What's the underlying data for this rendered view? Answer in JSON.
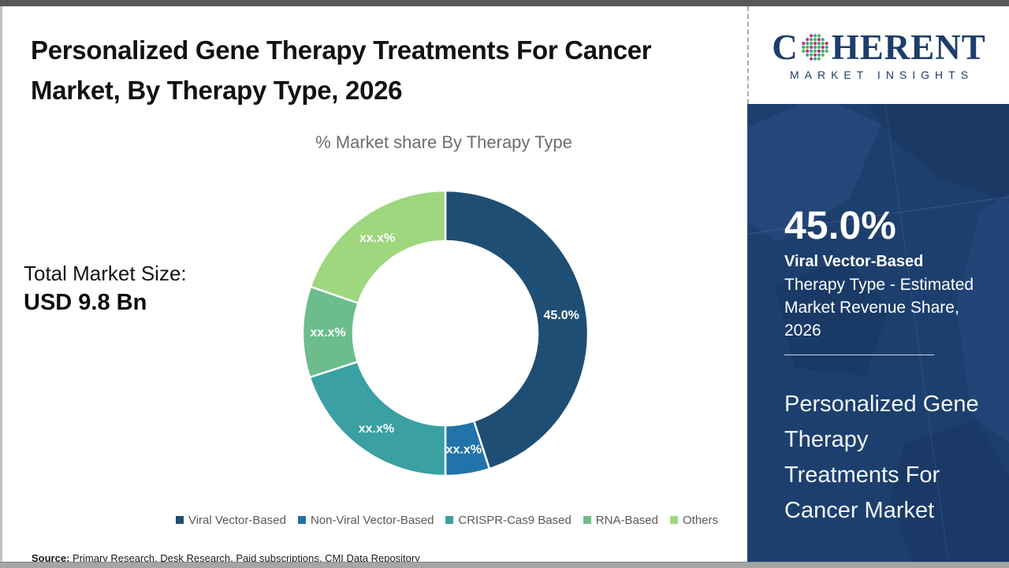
{
  "header": {
    "title": "Personalized Gene Therapy Treatments For Cancer Market, By Therapy Type, 2026"
  },
  "logo": {
    "word_start": "C",
    "word_end": "HERENT",
    "subtitle": "MARKET INSIGHTS",
    "text_color": "#1e3d6d",
    "globe_dot_colors": [
      "#2aa79b",
      "#56b24e",
      "#c22f74"
    ]
  },
  "main": {
    "subtitle": "% Market share By Therapy Type",
    "total_market_label": "Total Market Size:",
    "total_market_value": "USD 9.8 Bn",
    "source_label": "Source:",
    "source_text": " Primary Research, Desk Research, Paid subscriptions, CMI Data Repository"
  },
  "chart_data": {
    "type": "pie",
    "subtype": "donut",
    "title": "% Market share By Therapy Type",
    "legend_position": "bottom",
    "direction": "clockwise",
    "start_angle_deg": 0,
    "inner_radius_ratio": 0.645,
    "categories": [
      "Viral Vector-Based",
      "Non-Viral Vector-Based",
      "CRISPR-Cas9 Based",
      "RNA-Based",
      "Others"
    ],
    "labels": [
      "45.0%",
      "xx.x%",
      "xx.x%",
      "xx.x%",
      "xx.x%"
    ],
    "values_pct_estimated": [
      45.0,
      5.0,
      20.0,
      10.3,
      19.7
    ],
    "colors": [
      "#1f4e74",
      "#2273aa",
      "#3ba0a1",
      "#6cbd8b",
      "#9ed77e"
    ]
  },
  "sidebar": {
    "background": "#1d3f6e",
    "stat_value": "45.0%",
    "stat_label_bold": "Viral Vector-Based",
    "stat_label_rest": "Therapy Type - Estimated Market Revenue Share, 2026",
    "panel_title": "Personalized Gene Therapy Treatments For Cancer Market"
  }
}
